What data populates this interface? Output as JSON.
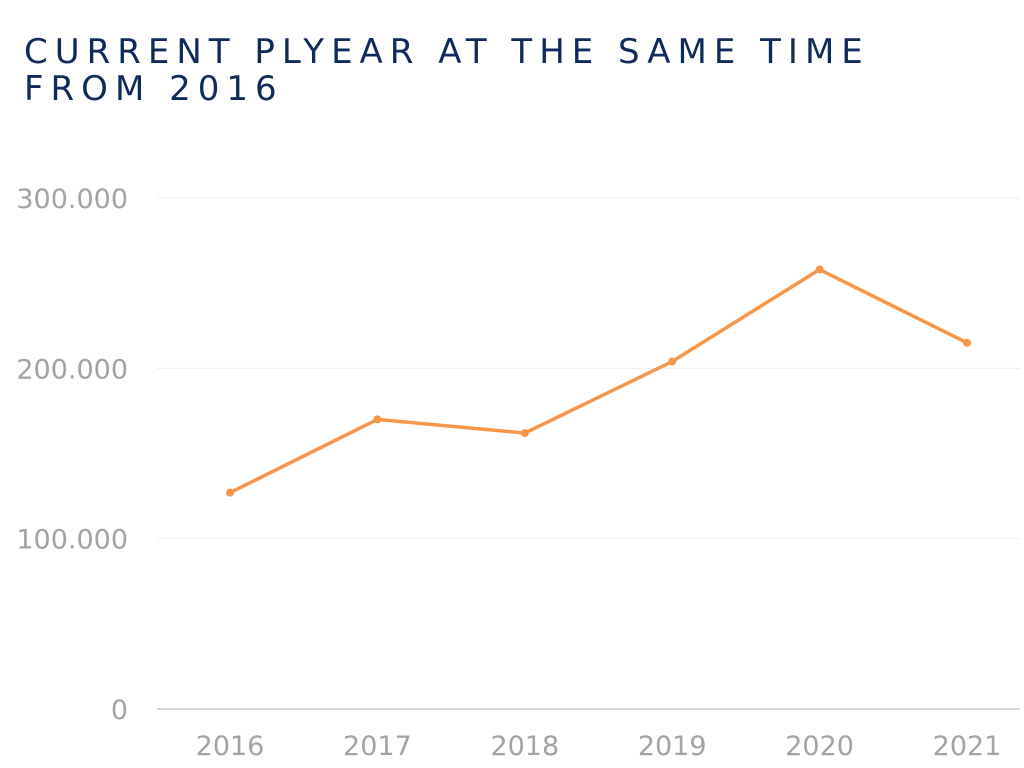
{
  "chart_data": {
    "type": "line",
    "title": "CURRENT PLYEAR AT THE SAME TIME FROM 2016",
    "xlabel": "",
    "ylabel": "",
    "categories": [
      "2016",
      "2017",
      "2018",
      "2019",
      "2020",
      "2021"
    ],
    "series": [
      {
        "values": [
          127000,
          170000,
          162000,
          204000,
          258000,
          215000
        ],
        "color": "#f79548"
      }
    ],
    "ylim": [
      0,
      300000
    ],
    "y_ticks": [
      0,
      100000,
      200000,
      300000
    ],
    "y_tick_labels": [
      "0",
      "100.000",
      "200.000",
      "300.000"
    ],
    "grid": true,
    "markers": true
  },
  "colors": {
    "title": "#0f2b5b",
    "line": "#f79548",
    "grid": "#eeeeee",
    "axis": "#cccccc",
    "tick_text": "#a3a3a3"
  }
}
